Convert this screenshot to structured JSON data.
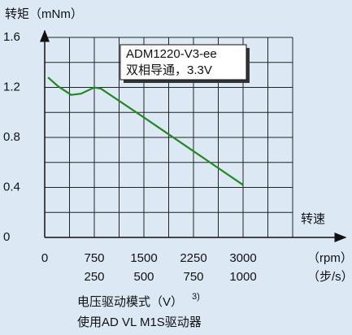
{
  "chart_data": {
    "type": "line",
    "title": "转矩（mNm）",
    "xlabel": "转速",
    "x_unit": "（rpm）",
    "x2_unit": "（步/s）",
    "legend": [
      "ADM1220-V3-ee",
      "双相导通，3.3V"
    ],
    "footer": [
      "电压驱动模式（V）",
      "使用AD VL M1S驱动器"
    ],
    "footnote": "3)",
    "xlim": [
      0,
      3750
    ],
    "ylim": [
      0,
      1.6
    ],
    "xticks": [
      0,
      750,
      1500,
      2250,
      3000
    ],
    "x2ticks": [
      {
        "value": 750,
        "label": "250"
      },
      {
        "value": 1500,
        "label": "500"
      },
      {
        "value": 2250,
        "label": "750"
      },
      {
        "value": 3000,
        "label": "1000"
      }
    ],
    "xminor": [
      375,
      1125,
      1875,
      2625,
      3375,
      3750
    ],
    "yticks": [
      0,
      0.4,
      0.8,
      1.2,
      1.6
    ],
    "yminor": [
      0.2,
      0.6,
      1.0,
      1.4
    ],
    "grid": true,
    "series": [
      {
        "color": "#1f8a1f",
        "x": [
          50,
          200,
          400,
          550,
          750,
          850,
          1500,
          2250,
          3000
        ],
        "values": [
          1.28,
          1.21,
          1.14,
          1.15,
          1.2,
          1.19,
          0.96,
          0.69,
          0.42
        ]
      }
    ]
  }
}
